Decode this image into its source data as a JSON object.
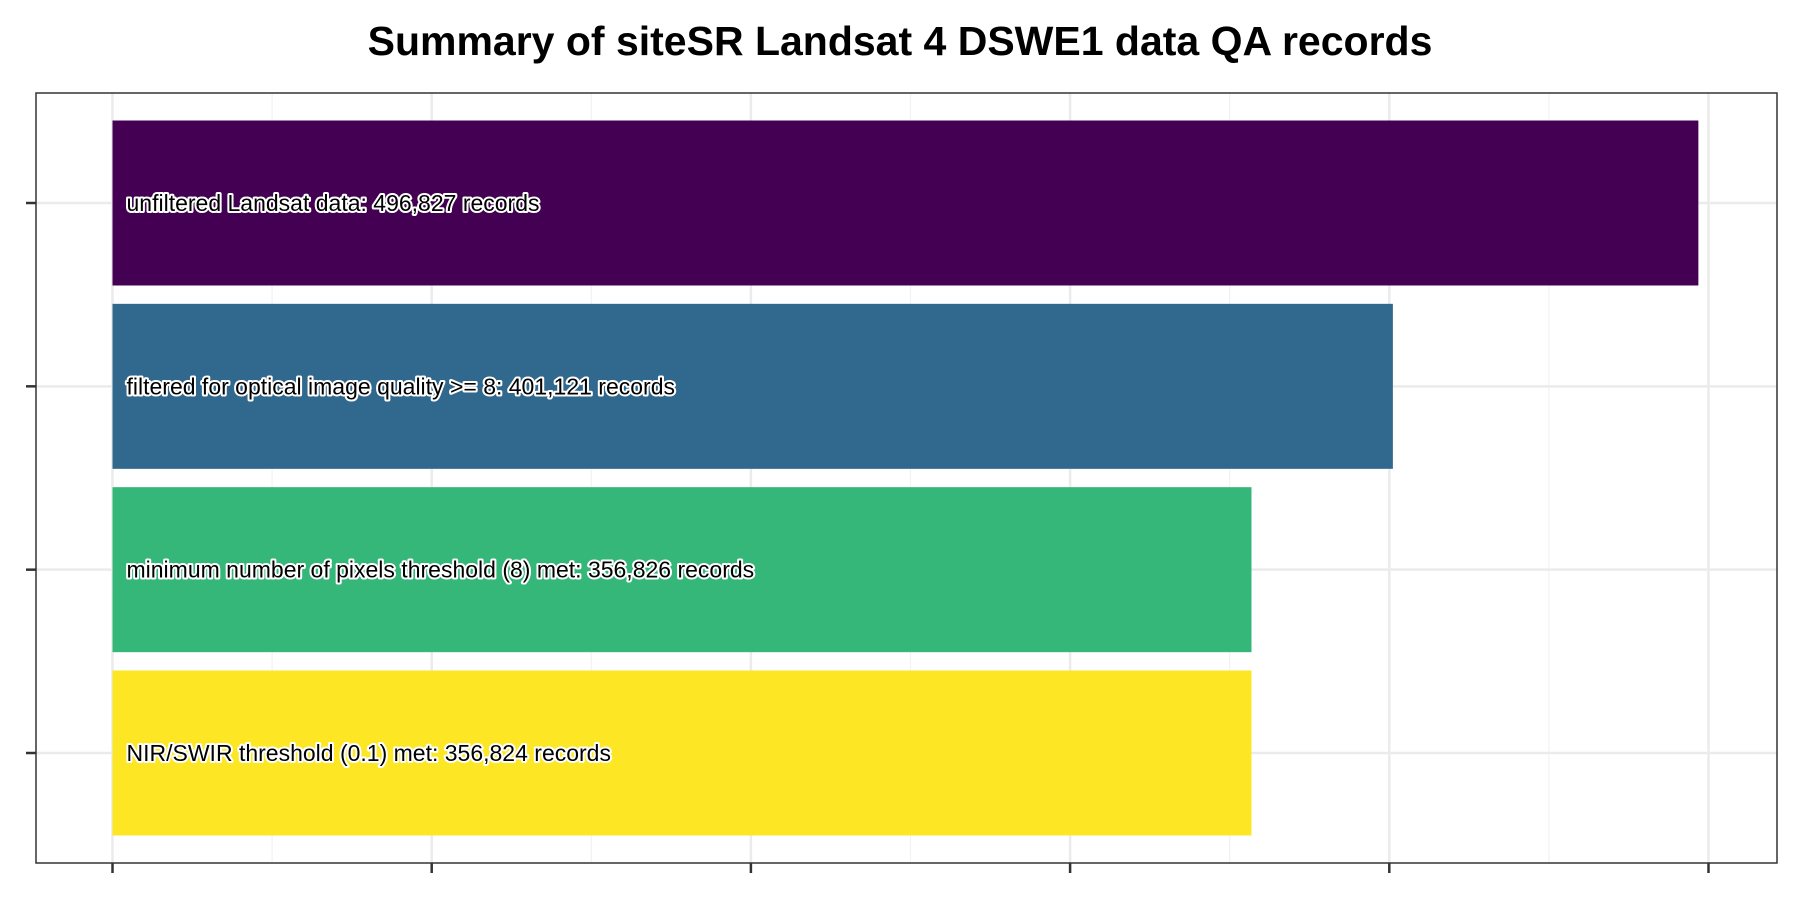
{
  "chart_data": {
    "type": "bar",
    "orientation": "horizontal",
    "title": "Summary of siteSR Landsat 4 DSWE1 data QA records",
    "xlabel": "",
    "ylabel": "",
    "xlim": [
      0,
      500000
    ],
    "x_ticks": [
      0,
      100000,
      200000,
      300000,
      400000,
      500000
    ],
    "tick_labels_shown": false,
    "grid": true,
    "legend": "none",
    "categories": [
      "unfiltered Landsat data: 496,827 records",
      "filtered for optical image quality >= 8: 401,121 records",
      "minimum number of pixels threshold (8) met: 356,826 records",
      "NIR/SWIR threshold (0.1) met: 356,824 records"
    ],
    "values": [
      496827,
      401121,
      356826,
      356824
    ],
    "colors": [
      "#440154",
      "#31688E",
      "#35B779",
      "#FDE725"
    ]
  }
}
